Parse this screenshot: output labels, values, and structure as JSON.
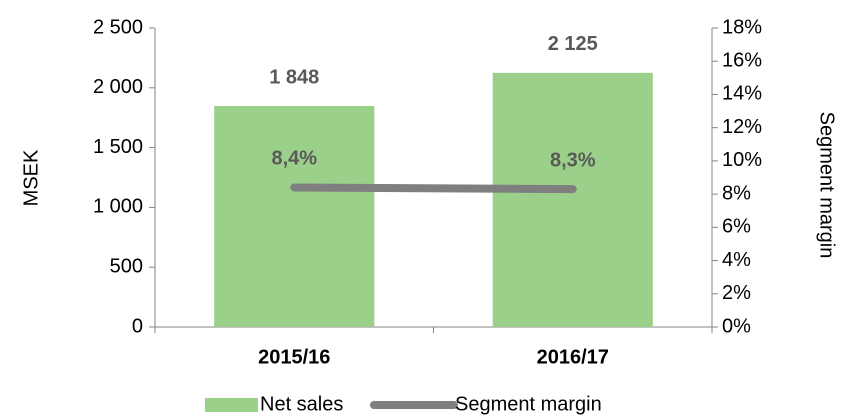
{
  "chart_data": {
    "type": "bar_line",
    "categories": [
      "2015/16",
      "2016/17"
    ],
    "series": [
      {
        "name": "Net sales",
        "color": "#9bd08a",
        "values": [
          1848,
          2125
        ],
        "value_labels": [
          "1 848",
          "2 125"
        ]
      },
      {
        "name": "Segment margin",
        "color": "#7f7f7f",
        "axis": "y2",
        "values": [
          8.4,
          8.3
        ],
        "value_labels": [
          "8,4%",
          "8,3%"
        ]
      }
    ],
    "ylabel": "MSEK",
    "y2label": "Segment margin",
    "ylim": [
      0,
      2500
    ],
    "yticks": [
      0,
      500,
      {
        "value": 1000,
        "label": "1 000"
      },
      {
        "value": 1500,
        "label": "1 500"
      },
      {
        "value": 2000,
        "label": "2 000"
      },
      {
        "value": 2500,
        "label": "2 500"
      }
    ],
    "y2lim": [
      0,
      18
    ],
    "y2ticks": [
      {
        "value": 0,
        "label": "0%"
      },
      {
        "value": 2,
        "label": "2%"
      },
      {
        "value": 4,
        "label": "4%"
      },
      {
        "value": 6,
        "label": "6%"
      },
      {
        "value": 8,
        "label": "8%"
      },
      {
        "value": 10,
        "label": "10%"
      },
      {
        "value": 12,
        "label": "12%"
      },
      {
        "value": 14,
        "label": "14%"
      },
      {
        "value": 16,
        "label": "16%"
      },
      {
        "value": 18,
        "label": "18%"
      }
    ],
    "legend": "bottom"
  }
}
